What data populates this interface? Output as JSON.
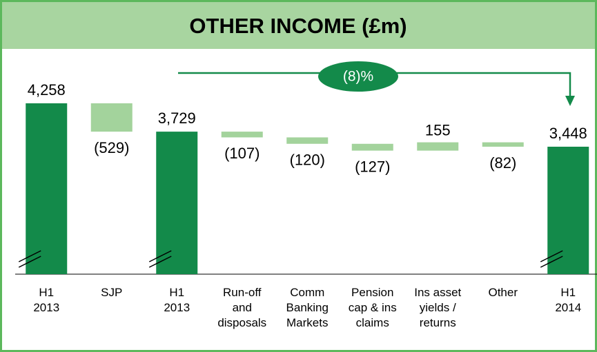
{
  "chart_data": {
    "type": "waterfall",
    "title": "OTHER INCOME (£m)",
    "categories": [
      [
        "H1",
        "2013"
      ],
      [
        "SJP"
      ],
      [
        "H1",
        "2013"
      ],
      [
        "Run-off",
        "and",
        "disposals"
      ],
      [
        "Comm",
        "Banking",
        "Markets"
      ],
      [
        "Pension",
        "cap & ins",
        "claims"
      ],
      [
        "Ins asset",
        "yields /",
        "returns"
      ],
      [
        "Other"
      ],
      [
        "H1",
        "2014"
      ]
    ],
    "measure": [
      "total",
      "relative",
      "total",
      "relative",
      "relative",
      "relative",
      "relative",
      "relative",
      "total"
    ],
    "values": [
      4258,
      -529,
      3729,
      -107,
      -120,
      -127,
      155,
      -82,
      3448
    ],
    "value_labels": [
      "4,258",
      "(529)",
      "3,729",
      "(107)",
      "(120)",
      "(127)",
      "155",
      "(82)",
      "3,448"
    ],
    "total_color": "#138a4a",
    "change_color": "#a3d39c",
    "ylim": [
      1070,
      4900
    ],
    "annotation": "(8)%"
  }
}
